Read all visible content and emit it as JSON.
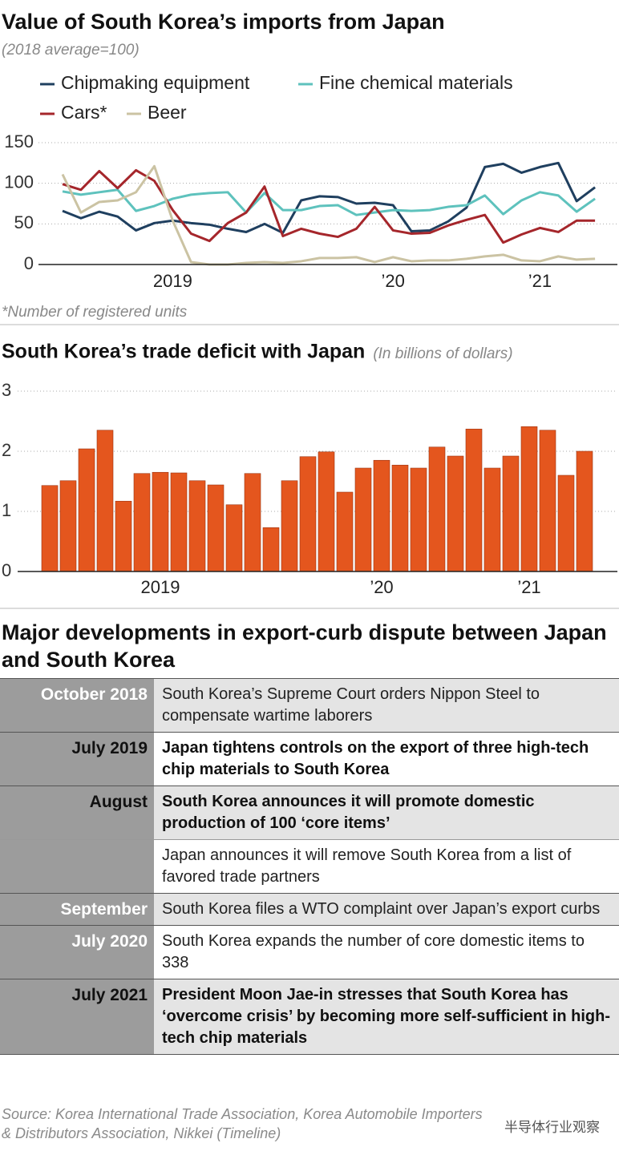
{
  "chart_data": [
    {
      "type": "line",
      "title": "Value of South Korea’s imports from Japan",
      "subtitle": "(2018 average=100)",
      "note": "*Number of registered units",
      "categories": [
        null,
        null,
        null,
        null,
        null,
        null,
        "2019",
        null,
        null,
        null,
        null,
        null,
        null,
        null,
        null,
        null,
        null,
        null,
        "’20",
        null,
        null,
        null,
        null,
        null,
        null,
        null,
        "’21",
        null,
        null,
        null
      ],
      "series": [
        {
          "name": "Chipmaking equipment",
          "color": "#1f3f5f",
          "values": [
            66,
            57,
            65,
            59,
            42,
            51,
            54,
            51,
            49,
            44,
            40,
            50,
            39,
            79,
            84,
            83,
            75,
            76,
            73,
            41,
            42,
            53,
            70,
            120,
            124,
            113,
            120,
            125,
            78,
            95
          ]
        },
        {
          "name": "Fine chemical materials",
          "color": "#5ec2bd",
          "values": [
            90,
            86,
            89,
            92,
            66,
            72,
            81,
            86,
            88,
            89,
            64,
            88,
            67,
            67,
            72,
            73,
            61,
            64,
            67,
            66,
            67,
            71,
            73,
            85,
            62,
            79,
            89,
            85,
            65,
            81
          ]
        },
        {
          "name": "Cars*",
          "color": "#a5262b",
          "values": [
            99,
            92,
            115,
            94,
            116,
            103,
            67,
            38,
            29,
            51,
            64,
            96,
            35,
            44,
            38,
            34,
            44,
            71,
            42,
            38,
            39,
            48,
            55,
            61,
            27,
            37,
            45,
            40,
            54,
            54
          ]
        },
        {
          "name": "Beer",
          "color": "#cbc3a3",
          "values": [
            111,
            64,
            77,
            79,
            89,
            121,
            54,
            3,
            0,
            0,
            2,
            3,
            2,
            4,
            8,
            8,
            9,
            3,
            9,
            4,
            5,
            5,
            7,
            10,
            12,
            5,
            4,
            10,
            6,
            7
          ]
        }
      ],
      "ylim": [
        0,
        150
      ],
      "yticks": [
        0,
        50,
        100,
        150
      ],
      "grid": true
    },
    {
      "type": "bar",
      "title": "South Korea’s trade deficit with Japan",
      "subtitle": "(In billions of dollars)",
      "categories": [
        null,
        null,
        null,
        null,
        null,
        null,
        "2019",
        null,
        null,
        null,
        null,
        null,
        null,
        null,
        null,
        null,
        null,
        null,
        "’20",
        null,
        null,
        null,
        null,
        null,
        null,
        null,
        "’21",
        null,
        null,
        null
      ],
      "values": [
        1.43,
        1.51,
        2.04,
        2.35,
        1.17,
        1.63,
        1.65,
        1.64,
        1.51,
        1.44,
        1.11,
        1.63,
        0.73,
        1.51,
        1.91,
        1.99,
        1.32,
        1.72,
        1.85,
        1.77,
        1.72,
        2.07,
        1.92,
        2.37,
        1.72,
        1.92,
        2.41,
        2.35,
        1.6,
        2.0
      ],
      "color": "#e4561e",
      "ylim": [
        0,
        3
      ],
      "yticks": [
        0,
        1,
        2,
        3
      ],
      "grid": true
    }
  ],
  "timeline": {
    "title": "Major developments in export-curb dispute between Japan and South Korea",
    "rows": [
      {
        "date": "October 2018",
        "text": "South Korea’s Supreme Court orders Nippon Steel to compensate wartime laborers",
        "highlight": false
      },
      {
        "date": "July 2019",
        "text": "Japan tightens controls on the export of three high-tech chip materials to South Korea",
        "highlight": true
      },
      {
        "date": "August",
        "text": "South Korea announces it will promote domestic production of 100 ‘core items’",
        "highlight": true
      },
      {
        "text": "Japan announces it will remove South Korea from a list of favored trade partners",
        "highlight": false
      },
      {
        "date": "September",
        "text": "South Korea files a WTO complaint over Japan’s export curbs",
        "highlight": false
      },
      {
        "date": "July 2020",
        "text": "South Korea expands the number of core domestic items to 338",
        "highlight": false
      },
      {
        "date": "July 2021",
        "text": "President Moon Jae-in stresses that South Korea has ‘overcome crisis’ by becoming more self-sufficient in high-tech chip materials",
        "highlight": true
      }
    ]
  },
  "source": "Source: Korea International Trade Association, Korea Automobile Importers & Distributors Association, Nikkei (Timeline)",
  "watermark": "半导体行业观察"
}
